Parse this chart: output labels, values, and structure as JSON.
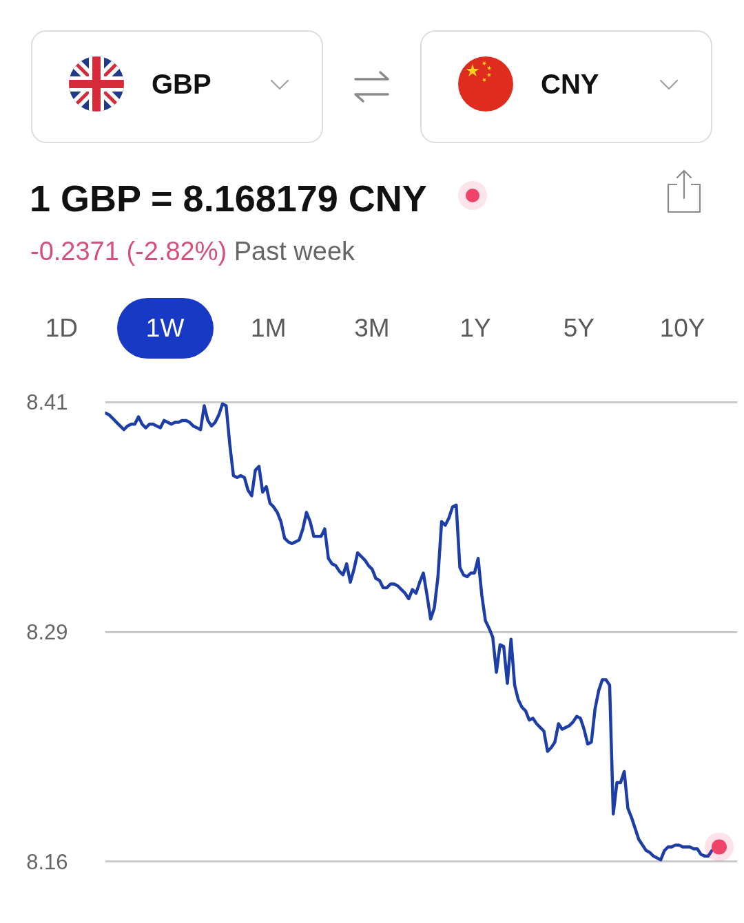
{
  "chart_data": {
    "type": "line",
    "title": "1 GBP = 8.168179 CNY",
    "subtitle": "-0.2371 (-2.82%)",
    "annotations": [
      "GBP",
      "CNY",
      "Past week",
      "1D",
      "1W",
      "1M",
      "3M",
      "1Y",
      "5Y",
      "10Y"
    ],
    "categories": [
      null,
      null,
      null,
      null,
      null,
      null,
      null,
      null,
      null,
      null,
      null,
      null,
      null,
      null,
      null,
      null,
      null,
      null,
      null,
      null,
      null,
      null,
      null,
      null,
      null,
      null,
      null,
      null,
      null,
      null,
      null,
      null,
      null,
      null,
      null,
      null,
      null,
      null,
      null,
      null,
      null,
      null,
      null,
      null,
      null,
      null,
      null,
      null,
      null,
      null,
      null,
      null,
      null,
      null,
      null,
      null,
      null,
      null,
      null,
      null,
      null,
      null,
      null,
      null,
      null,
      null,
      null,
      null,
      null,
      null,
      null,
      null,
      null,
      null,
      null,
      null,
      null,
      null,
      null,
      null,
      null,
      null,
      null,
      null,
      null,
      null,
      null,
      null,
      null,
      null,
      null,
      null,
      null,
      null,
      null,
      null,
      null,
      null,
      null,
      null,
      null,
      null,
      null,
      null,
      null,
      null,
      null,
      null,
      null,
      null,
      null,
      null,
      null,
      null,
      null,
      null,
      null,
      null,
      null,
      null,
      null,
      null,
      null,
      null,
      null,
      null,
      null,
      null,
      null,
      null,
      null,
      null,
      null,
      null,
      null,
      null,
      null,
      null,
      null,
      null,
      null,
      null,
      null,
      null,
      null,
      null,
      null,
      null,
      null,
      null,
      null,
      null,
      null,
      null,
      null,
      null,
      null,
      null,
      null,
      null,
      null,
      null,
      null,
      null,
      null,
      null,
      null,
      null,
      null
    ],
    "series": [
      {
        "color": "#1d3ea6",
        "values": [
          8.404,
          8.403,
          8.401,
          8.399,
          8.397,
          8.395,
          8.397,
          8.398,
          8.398,
          8.402,
          8.398,
          8.396,
          8.398,
          8.398,
          8.397,
          8.396,
          8.4,
          8.399,
          8.398,
          8.399,
          8.399,
          8.4,
          8.4,
          8.399,
          8.397,
          8.396,
          8.395,
          8.408,
          8.4,
          8.397,
          8.399,
          8.403,
          8.409,
          8.408,
          8.387,
          8.37,
          8.369,
          8.37,
          8.369,
          8.362,
          8.359,
          8.373,
          8.375,
          8.361,
          8.364,
          8.355,
          8.353,
          8.35,
          8.345,
          8.336,
          8.334,
          8.333,
          8.334,
          8.335,
          8.341,
          8.35,
          8.345,
          8.337,
          8.337,
          8.337,
          8.341,
          8.325,
          8.322,
          8.321,
          8.318,
          8.316,
          8.322,
          8.312,
          8.319,
          8.328,
          8.326,
          8.324,
          8.321,
          8.319,
          8.314,
          8.313,
          8.309,
          8.309,
          8.311,
          8.311,
          8.31,
          8.308,
          8.306,
          8.303,
          8.308,
          8.306,
          8.312,
          8.317,
          8.305,
          8.292,
          8.298,
          8.315,
          8.345,
          8.343,
          8.347,
          8.353,
          8.354,
          8.32,
          8.316,
          8.315,
          8.317,
          8.317,
          8.325,
          8.305,
          8.291,
          8.287,
          8.282,
          8.263,
          8.278,
          8.277,
          8.257,
          8.281,
          8.256,
          8.248,
          8.244,
          8.242,
          8.237,
          8.238,
          8.235,
          8.233,
          8.231,
          8.22,
          8.222,
          8.225,
          8.235,
          8.232,
          8.233,
          8.234,
          8.236,
          8.239,
          8.238,
          8.232,
          8.224,
          8.225,
          8.243,
          8.253,
          8.259,
          8.259,
          8.256,
          8.186,
          8.203,
          8.203,
          8.209,
          8.189,
          8.184,
          8.178,
          8.172,
          8.169,
          8.166,
          8.165,
          8.163,
          8.162,
          8.161,
          8.166,
          8.168,
          8.168,
          8.169,
          8.169,
          8.168,
          8.168,
          8.168,
          8.167,
          8.167,
          8.164,
          8.163,
          8.163,
          8.166,
          null,
          null
        ]
      },
      {
        "type": "scatter",
        "marker": "circle",
        "color": "#f0436a",
        "values": [
          null,
          null,
          null,
          null,
          null,
          null,
          null,
          null,
          null,
          null,
          null,
          null,
          null,
          null,
          null,
          null,
          null,
          null,
          null,
          null,
          null,
          null,
          null,
          null,
          null,
          null,
          null,
          null,
          null,
          null,
          null,
          null,
          null,
          null,
          null,
          null,
          null,
          null,
          null,
          null,
          null,
          null,
          null,
          null,
          null,
          null,
          null,
          null,
          null,
          null,
          null,
          null,
          null,
          null,
          null,
          null,
          null,
          null,
          null,
          null,
          null,
          null,
          null,
          null,
          null,
          null,
          null,
          null,
          null,
          null,
          null,
          null,
          null,
          null,
          null,
          null,
          null,
          null,
          null,
          null,
          null,
          null,
          null,
          null,
          null,
          null,
          null,
          null,
          null,
          null,
          null,
          null,
          null,
          null,
          null,
          null,
          null,
          null,
          null,
          null,
          null,
          null,
          null,
          null,
          null,
          null,
          null,
          null,
          null,
          null,
          null,
          null,
          null,
          null,
          null,
          null,
          null,
          null,
          null,
          null,
          null,
          null,
          null,
          null,
          null,
          null,
          null,
          null,
          null,
          null,
          null,
          null,
          null,
          null,
          null,
          null,
          null,
          null,
          null,
          null,
          null,
          null,
          null,
          null,
          null,
          null,
          null,
          null,
          null,
          null,
          null,
          null,
          null,
          null,
          null,
          null,
          null,
          null,
          null,
          null,
          null,
          null,
          null,
          null,
          null,
          null,
          null,
          null,
          8.168
        ]
      }
    ],
    "ylim": [
      8.159,
      8.411
    ],
    "yticks": [
      8.41,
      {
        "value": 8.285,
        "label": "8.29"
      },
      8.16
    ],
    "grid": "y",
    "line_style": "solid"
  }
}
